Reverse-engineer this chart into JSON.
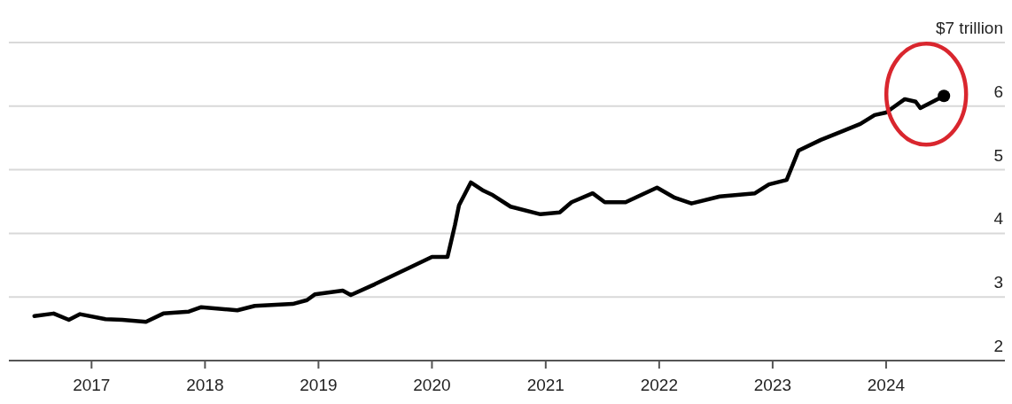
{
  "chart_data": {
    "type": "line",
    "xlim": [
      "2016-04-10",
      "2025-01-20"
    ],
    "ylim": [
      2,
      7
    ],
    "xticks": [
      "2017",
      "2018",
      "2019",
      "2020",
      "2021",
      "2022",
      "2023",
      "2024"
    ],
    "yticks": [
      2,
      3,
      4,
      5,
      6,
      {
        "value": 7,
        "label": "$7 trillion"
      }
    ],
    "grid": "y",
    "x": [
      "2016-07-01",
      "2016-09-01",
      "2016-10-20",
      "2016-11-25",
      "2017-02-15",
      "2017-04-10",
      "2017-06-25",
      "2017-08-20",
      "2017-11-10",
      "2017-12-20",
      "2018-04-15",
      "2018-06-10",
      "2018-10-10",
      "2018-11-25",
      "2018-12-20",
      "2019-03-20",
      "2019-04-15",
      "2019-07-01",
      "2019-10-20",
      "2020-01-01",
      "2020-02-20",
      "2020-03-15",
      "2020-03-28",
      "2020-05-05",
      "2020-06-15",
      "2020-07-15",
      "2020-09-10",
      "2020-12-15",
      "2021-02-15",
      "2021-03-25",
      "2021-06-01",
      "2021-07-10",
      "2021-09-15",
      "2021-12-25",
      "2022-02-20",
      "2022-04-15",
      "2022-07-15",
      "2022-11-05",
      "2022-12-20",
      "2023-02-15",
      "2023-03-25",
      "2023-06-05",
      "2023-08-15",
      "2023-10-10",
      "2023-11-25",
      "2024-01-01",
      "2024-03-01",
      "2024-04-05",
      "2024-04-20",
      "2024-07-05"
    ],
    "series": [
      {
        "color": "#000000",
        "values": [
          2.7,
          2.74,
          2.64,
          2.73,
          2.65,
          2.64,
          2.61,
          2.74,
          2.77,
          2.84,
          2.79,
          2.86,
          2.89,
          2.95,
          3.04,
          3.1,
          3.03,
          3.2,
          3.46,
          3.63,
          3.63,
          4.13,
          4.44,
          4.8,
          4.67,
          4.6,
          4.42,
          4.3,
          4.33,
          4.49,
          4.63,
          4.49,
          4.49,
          4.72,
          4.56,
          4.47,
          4.58,
          4.63,
          4.77,
          4.84,
          5.3,
          5.47,
          5.61,
          5.72,
          5.86,
          5.9,
          6.11,
          6.07,
          5.97,
          6.16
        ]
      }
    ]
  }
}
